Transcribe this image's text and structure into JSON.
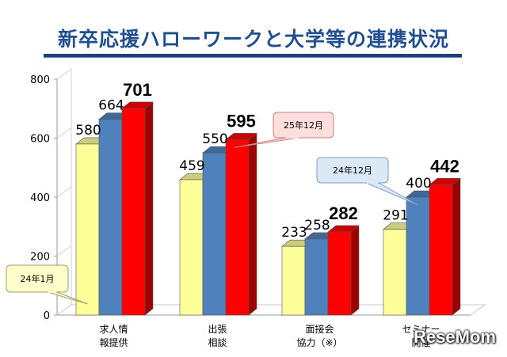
{
  "chart_data": {
    "type": "bar",
    "title": "新卒応援ハローワークと大学等の連携状況",
    "categories": [
      [
        "求人情",
        "報提供"
      ],
      [
        "出張",
        "相談"
      ],
      [
        "面接会",
        "協力（※）"
      ],
      [
        "セミナー",
        "開催"
      ]
    ],
    "series": [
      {
        "values": [
          580,
          459,
          233,
          291
        ],
        "color": "#ffff99"
      },
      {
        "values": [
          664,
          550,
          258,
          400
        ],
        "color": "#4f81bd"
      },
      {
        "values": [
          701,
          595,
          282,
          442
        ],
        "color": "#ff0000"
      }
    ],
    "ylim": [
      0,
      800
    ],
    "yticks": [
      0,
      200,
      400,
      600,
      800
    ],
    "grid": false,
    "annotations": [
      {
        "text": "24年1月",
        "target_series": 0,
        "target_category": 0
      },
      {
        "text": "25年12月",
        "target_series": 2,
        "target_category": 1
      },
      {
        "text": "24年12月",
        "target_series": 1,
        "target_category": 3
      }
    ]
  },
  "watermark": "ReseMom"
}
